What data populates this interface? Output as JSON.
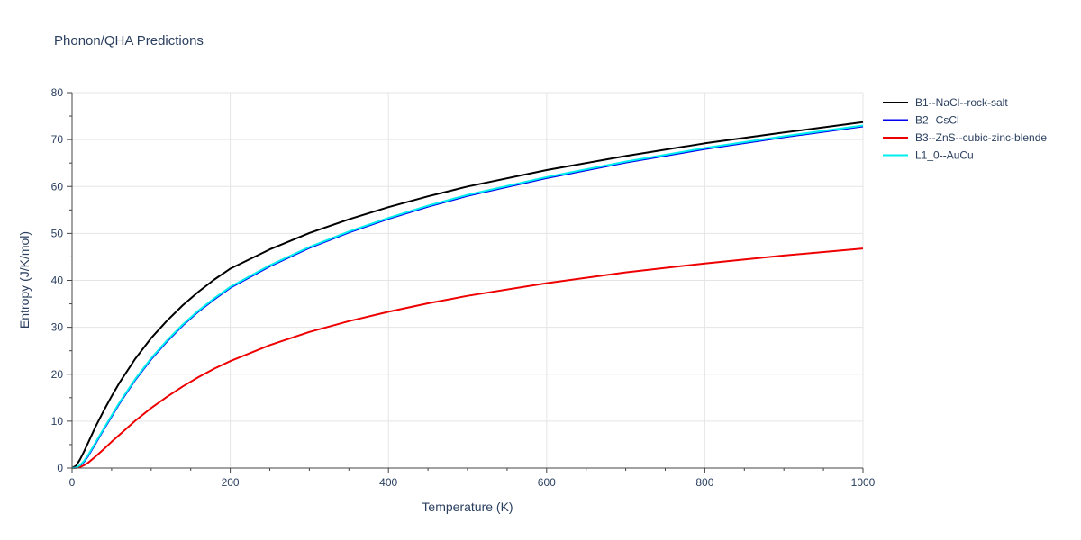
{
  "chart_data": {
    "type": "line",
    "title": "Phonon/QHA Predictions",
    "xlabel": "Temperature (K)",
    "ylabel": "Entropy (J/K/mol)",
    "xlim": [
      0,
      1000
    ],
    "ylim": [
      0,
      80
    ],
    "xticks": [
      0,
      200,
      400,
      600,
      800,
      1000
    ],
    "yticks": [
      0,
      10,
      20,
      30,
      40,
      50,
      60,
      70,
      80
    ],
    "grid": true,
    "legend_position": "top-right outside",
    "series": [
      {
        "name": "B1--NaCl--rock-salt",
        "color": "#000000",
        "x": [
          0,
          5,
          10,
          15,
          20,
          30,
          40,
          50,
          60,
          80,
          100,
          120,
          140,
          160,
          180,
          200,
          250,
          300,
          350,
          400,
          450,
          500,
          600,
          700,
          800,
          900,
          1000
        ],
        "y": [
          0,
          0.5,
          1.8,
          3.5,
          5.3,
          8.9,
          12.2,
          15.3,
          18.2,
          23.3,
          27.7,
          31.4,
          34.7,
          37.6,
          40.2,
          42.5,
          46.6,
          50.1,
          53.0,
          55.6,
          57.9,
          60.0,
          63.5,
          66.5,
          69.2,
          71.5,
          73.7
        ]
      },
      {
        "name": "B2--CsCl",
        "color": "#0000ee",
        "x": [
          0,
          5,
          10,
          15,
          20,
          30,
          40,
          50,
          60,
          80,
          100,
          120,
          140,
          160,
          180,
          200,
          250,
          300,
          350,
          400,
          450,
          500,
          600,
          700,
          800,
          900,
          1000
        ],
        "y": [
          0,
          0.1,
          0.5,
          1.3,
          2.5,
          5.3,
          8.2,
          11.0,
          13.8,
          18.8,
          23.2,
          27.0,
          30.4,
          33.4,
          36.0,
          38.4,
          43.0,
          46.9,
          50.2,
          53.1,
          55.7,
          58.0,
          61.8,
          65.1,
          68.0,
          70.5,
          72.8
        ]
      },
      {
        "name": "B3--ZnS--cubic-zinc-blende",
        "color": "#ee0000",
        "x": [
          0,
          5,
          10,
          15,
          20,
          30,
          40,
          50,
          60,
          80,
          100,
          120,
          140,
          160,
          180,
          200,
          250,
          300,
          350,
          400,
          450,
          500,
          600,
          700,
          800,
          900,
          1000
        ],
        "y": [
          0,
          0.05,
          0.2,
          0.6,
          1.1,
          2.5,
          4.0,
          5.6,
          7.1,
          10.1,
          12.8,
          15.2,
          17.4,
          19.4,
          21.2,
          22.8,
          26.2,
          29.0,
          31.3,
          33.3,
          35.1,
          36.7,
          39.4,
          41.7,
          43.6,
          45.3,
          46.8
        ]
      },
      {
        "name": "L1_0--AuCu",
        "color": "#00eeee",
        "x": [
          0,
          5,
          10,
          15,
          20,
          30,
          40,
          50,
          60,
          80,
          100,
          120,
          140,
          160,
          180,
          200,
          250,
          300,
          350,
          400,
          450,
          500,
          600,
          700,
          800,
          900,
          1000
        ],
        "y": [
          0,
          0.1,
          0.6,
          1.5,
          2.7,
          5.5,
          8.4,
          11.2,
          14.0,
          19.0,
          23.4,
          27.2,
          30.6,
          33.6,
          36.2,
          38.6,
          43.2,
          47.1,
          50.4,
          53.3,
          55.9,
          58.2,
          62.0,
          65.3,
          68.2,
          70.7,
          73.0
        ]
      }
    ]
  }
}
